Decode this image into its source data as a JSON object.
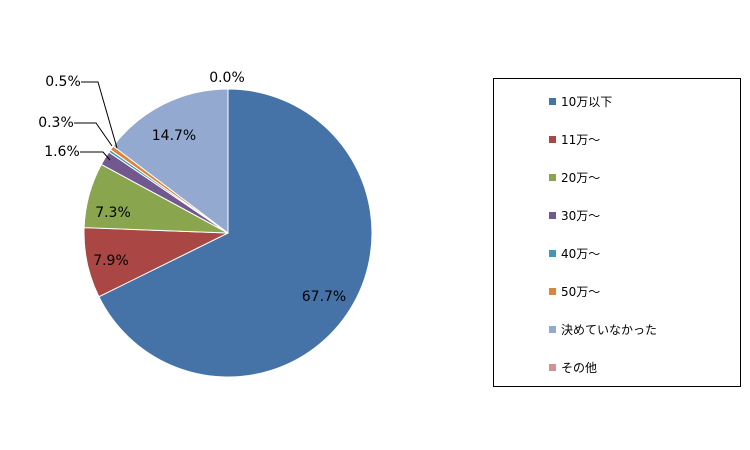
{
  "chart_data": {
    "type": "pie",
    "slices": [
      {
        "name": "10万以下",
        "value": 67.7,
        "label": "67.7%",
        "color": "#4573A7"
      },
      {
        "name": "11万～",
        "value": 7.9,
        "label": "7.9%",
        "color": "#AA4644"
      },
      {
        "name": "20万～",
        "value": 7.3,
        "label": "7.3%",
        "color": "#89A54E"
      },
      {
        "name": "30万～",
        "value": 1.6,
        "label": "1.6%",
        "color": "#71588F"
      },
      {
        "name": "40万～",
        "value": 0.3,
        "label": "0.3%",
        "color": "#4298AF"
      },
      {
        "name": "50万～",
        "value": 0.5,
        "label": "0.5%",
        "color": "#DB843D"
      },
      {
        "name": "決めていなかった",
        "value": 14.7,
        "label": "14.7%",
        "color": "#93A9CF"
      },
      {
        "name": "その他",
        "value": 0.0,
        "label": "0.0%",
        "color": "#D19392"
      }
    ],
    "start": "12 o'clock",
    "direction": "clockwise",
    "legend": "right"
  }
}
